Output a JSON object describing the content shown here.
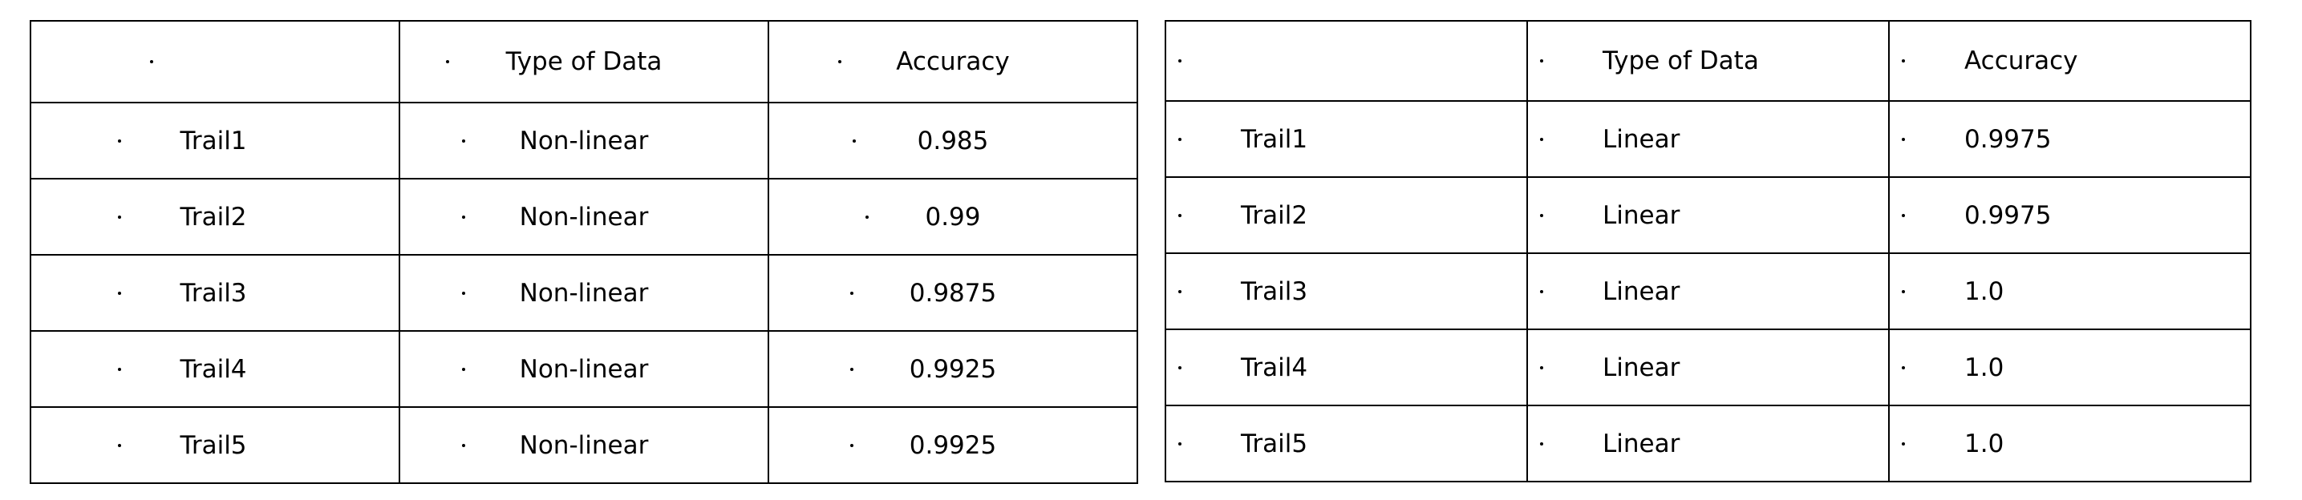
{
  "left_table": {
    "header": [
      "",
      "Type of Data",
      "Accuracy"
    ],
    "rows": [
      [
        "Trail1",
        "Non-linear",
        "0.985"
      ],
      [
        "Trail2",
        "Non-linear",
        "0.99"
      ],
      [
        "Trail3",
        "Non-linear",
        "0.9875"
      ],
      [
        "Trail4",
        "Non-linear",
        "0.9925"
      ],
      [
        "Trail5",
        "Non-linear",
        "0.9925"
      ]
    ]
  },
  "right_table": {
    "header": [
      "",
      "Type of Data",
      "Accuracy"
    ],
    "rows": [
      [
        "Trail1",
        "Linear",
        "0.9975"
      ],
      [
        "Trail2",
        "Linear",
        "0.9975"
      ],
      [
        "Trail3",
        "Linear",
        "1.0"
      ],
      [
        "Trail4",
        "Linear",
        "1.0"
      ],
      [
        "Trail5",
        "Linear",
        "1.0"
      ]
    ]
  }
}
